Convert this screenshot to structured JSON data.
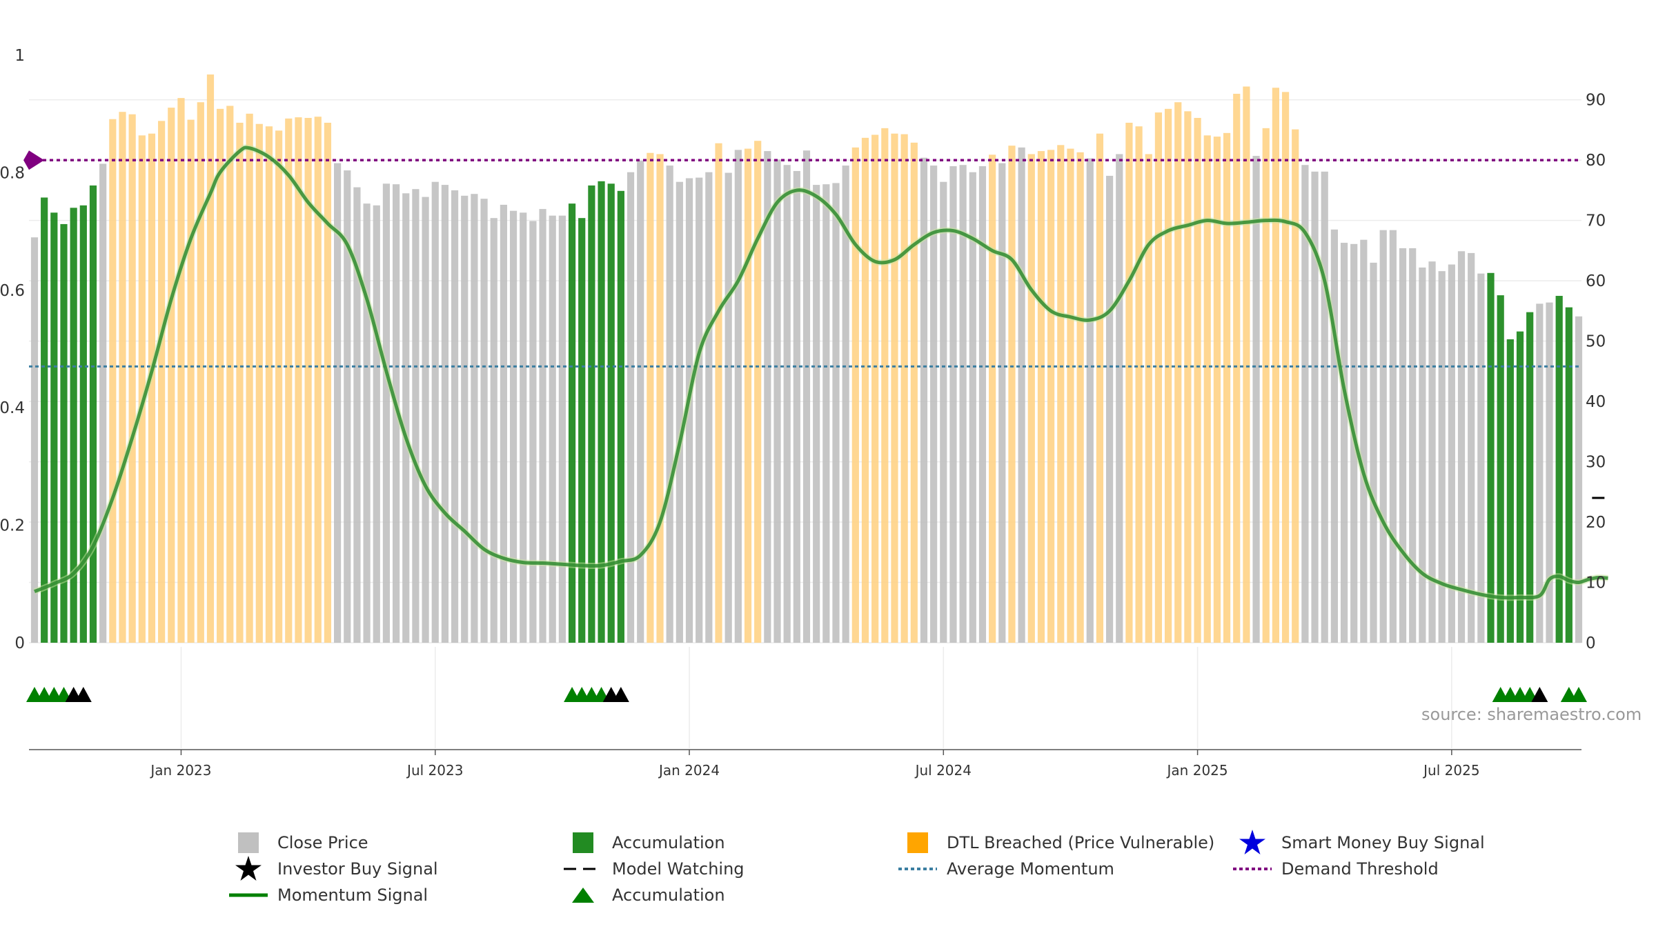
{
  "source": "source: sharemaestro.com",
  "colors": {
    "close": "#c0c0c0",
    "accumulation": "#228b22",
    "dtl": "#ffd386",
    "momentum": "#2e8b2e",
    "average": "#3b7ea1",
    "demand": "#800080"
  },
  "legend": [
    {
      "label": "Close Price",
      "icon": "gray-square"
    },
    {
      "label": "Accumulation",
      "icon": "green-square"
    },
    {
      "label": "DTL Breached (Price Vulnerable)",
      "icon": "orange-square"
    },
    {
      "label": "Smart Money Buy Signal",
      "icon": "blue-star"
    },
    {
      "label": "Investor Buy Signal",
      "icon": "black-star"
    },
    {
      "label": "Model Watching",
      "icon": "black-dash"
    },
    {
      "label": "Average Momentum",
      "icon": "blue-dotted-line"
    },
    {
      "label": "Demand Threshold",
      "icon": "purple-dotted-line"
    },
    {
      "label": "Momentum Signal",
      "icon": "green-line"
    },
    {
      "label": "Accumulation",
      "icon": "green-triangle"
    }
  ],
  "chart_data": {
    "type": "bar",
    "left_axis": {
      "ticks": [
        "0",
        "0.2",
        "0.4",
        "0.6",
        "0.8",
        "1"
      ],
      "range": [
        0,
        1
      ]
    },
    "right_axis": {
      "ticks": [
        "0",
        "10",
        "20",
        "30",
        "40",
        "50",
        "60",
        "70",
        "80",
        "90"
      ],
      "range": [
        0,
        97.4
      ]
    },
    "x_ticks": [
      "Jan 2023",
      "Jul 2023",
      "Jan 2024",
      "Jul 2024",
      "Jan 2025",
      "Jul 2025"
    ],
    "x_tick_weeks": [
      15,
      41,
      67,
      93,
      119,
      145
    ],
    "demand_threshold": 80,
    "average_momentum": 45.8,
    "bars": {
      "values": [
        67.2,
        73.8,
        71.3,
        69.4,
        72.1,
        72.5,
        75.8,
        79.4,
        86.8,
        88.0,
        87.6,
        84.1,
        84.4,
        86.5,
        88.7,
        90.3,
        86.7,
        89.6,
        94.2,
        88.5,
        89.0,
        86.2,
        87.7,
        86.0,
        85.6,
        84.9,
        86.9,
        87.1,
        87.0,
        87.2,
        86.2,
        79.5,
        78.3,
        75.5,
        72.8,
        72.5,
        76.1,
        76.0,
        74.5,
        75.2,
        73.9,
        76.4,
        75.9,
        75.0,
        74.1,
        74.4,
        73.6,
        70.4,
        72.6,
        71.6,
        71.3,
        69.9,
        71.9,
        70.8,
        70.8,
        72.8,
        70.4,
        75.8,
        76.5,
        76.1,
        74.9,
        78.0,
        79.9,
        81.2,
        81.0,
        79.1,
        76.4,
        77.0,
        77.1,
        78.0,
        82.8,
        77.9,
        81.7,
        81.9,
        83.2,
        81.5,
        80.1,
        79.2,
        78.2,
        81.6,
        75.9,
        76.0,
        76.2,
        79.1,
        82.1,
        83.7,
        84.2,
        85.3,
        84.4,
        84.3,
        82.9,
        80.4,
        79.1,
        76.4,
        79.0,
        79.2,
        78.0,
        79.0,
        80.9,
        79.5,
        82.4,
        82.1,
        81.0,
        81.5,
        81.7,
        82.5,
        81.9,
        81.3,
        80.3,
        84.4,
        77.4,
        81.0,
        86.2,
        85.6,
        81.0,
        87.9,
        88.5,
        89.6,
        88.1,
        87.0,
        84.1,
        83.9,
        84.5,
        91.0,
        92.2,
        80.7,
        85.3,
        92.0,
        91.3,
        85.1,
        79.2,
        78.1,
        78.1,
        68.5,
        66.3,
        66.1,
        66.8,
        63.0,
        68.4,
        68.4,
        65.4,
        65.4,
        62.2,
        63.2,
        61.6,
        62.7,
        64.9,
        64.6,
        61.2,
        61.3,
        57.6,
        50.3,
        51.6,
        54.8,
        56.2,
        56.4,
        57.5,
        55.6,
        54.1
      ],
      "category": [
        "c",
        "a",
        "a",
        "a",
        "a",
        "a",
        "a",
        "c",
        "d",
        "d",
        "d",
        "d",
        "d",
        "d",
        "d",
        "d",
        "d",
        "d",
        "d",
        "d",
        "d",
        "d",
        "d",
        "d",
        "d",
        "d",
        "d",
        "d",
        "d",
        "d",
        "d",
        "c",
        "c",
        "c",
        "c",
        "c",
        "c",
        "c",
        "c",
        "c",
        "c",
        "c",
        "c",
        "c",
        "c",
        "c",
        "c",
        "c",
        "c",
        "c",
        "c",
        "c",
        "c",
        "c",
        "c",
        "a",
        "a",
        "a",
        "a",
        "a",
        "a",
        "c",
        "c",
        "d",
        "d",
        "c",
        "c",
        "c",
        "c",
        "c",
        "d",
        "c",
        "c",
        "d",
        "d",
        "c",
        "c",
        "c",
        "c",
        "c",
        "c",
        "c",
        "c",
        "c",
        "d",
        "d",
        "d",
        "d",
        "d",
        "d",
        "d",
        "c",
        "c",
        "c",
        "c",
        "c",
        "c",
        "c",
        "d",
        "c",
        "d",
        "c",
        "d",
        "d",
        "d",
        "d",
        "d",
        "d",
        "c",
        "d",
        "c",
        "c",
        "d",
        "d",
        "d",
        "d",
        "d",
        "d",
        "d",
        "d",
        "d",
        "d",
        "d",
        "d",
        "d",
        "c",
        "d",
        "d",
        "d",
        "d",
        "c",
        "c",
        "c",
        "c",
        "c",
        "c",
        "c",
        "c",
        "c",
        "c",
        "c",
        "c",
        "c",
        "c",
        "c",
        "c",
        "c",
        "c",
        "c",
        "a",
        "a",
        "a",
        "a",
        "a",
        "c",
        "c",
        "a",
        "a",
        "c"
      ]
    },
    "momentum": [
      [
        0,
        8.5
      ],
      [
        2,
        9.8
      ],
      [
        4,
        11.5
      ],
      [
        6,
        16
      ],
      [
        8,
        24
      ],
      [
        10,
        34
      ],
      [
        12,
        45
      ],
      [
        14,
        57
      ],
      [
        16,
        67
      ],
      [
        18,
        74.5
      ],
      [
        19,
        78
      ],
      [
        21,
        81.5
      ],
      [
        22,
        82
      ],
      [
        24,
        80.5
      ],
      [
        26,
        77.5
      ],
      [
        28,
        73
      ],
      [
        30,
        69.5
      ],
      [
        32,
        66
      ],
      [
        34,
        57
      ],
      [
        36,
        45
      ],
      [
        38,
        34
      ],
      [
        40,
        26
      ],
      [
        42,
        21.5
      ],
      [
        44,
        18.5
      ],
      [
        46,
        15.5
      ],
      [
        48,
        14
      ],
      [
        50,
        13.3
      ],
      [
        52,
        13.2
      ],
      [
        54,
        13
      ],
      [
        56,
        12.8
      ],
      [
        58,
        12.8
      ],
      [
        60,
        13.5
      ],
      [
        62,
        14.5
      ],
      [
        64,
        20
      ],
      [
        66,
        33
      ],
      [
        68,
        48
      ],
      [
        70,
        55
      ],
      [
        72,
        60
      ],
      [
        74,
        67
      ],
      [
        76,
        73
      ],
      [
        78,
        75
      ],
      [
        80,
        74
      ],
      [
        82,
        71
      ],
      [
        84,
        66
      ],
      [
        86,
        63.2
      ],
      [
        88,
        63.5
      ],
      [
        90,
        66
      ],
      [
        92,
        68
      ],
      [
        94,
        68.3
      ],
      [
        96,
        67
      ],
      [
        98,
        65
      ],
      [
        100,
        63.5
      ],
      [
        102,
        58.5
      ],
      [
        104,
        55
      ],
      [
        106,
        54
      ],
      [
        108,
        53.5
      ],
      [
        110,
        55
      ],
      [
        112,
        60
      ],
      [
        114,
        66
      ],
      [
        116,
        68.3
      ],
      [
        118,
        69.2
      ],
      [
        120,
        70
      ],
      [
        122,
        69.5
      ],
      [
        124,
        69.7
      ],
      [
        126,
        70
      ],
      [
        128,
        69.8
      ],
      [
        130,
        68
      ],
      [
        132,
        60
      ],
      [
        134,
        42
      ],
      [
        136,
        28
      ],
      [
        138,
        20
      ],
      [
        140,
        15
      ],
      [
        142,
        11.5
      ],
      [
        144,
        9.8
      ],
      [
        146,
        8.8
      ],
      [
        148,
        8
      ],
      [
        150,
        7.5
      ],
      [
        152,
        7.5
      ],
      [
        154,
        7.8
      ],
      [
        155,
        10.5
      ],
      [
        156,
        11
      ],
      [
        157,
        10.3
      ],
      [
        158,
        10
      ],
      [
        159,
        10.5
      ],
      [
        160,
        10.8
      ],
      [
        161,
        10.7
      ]
    ],
    "triangles": [
      {
        "week": 0,
        "type": "accumulation"
      },
      {
        "week": 1,
        "type": "accumulation"
      },
      {
        "week": 2,
        "type": "accumulation"
      },
      {
        "week": 3,
        "type": "accumulation"
      },
      {
        "week": 4,
        "type": "investor"
      },
      {
        "week": 5,
        "type": "investor"
      },
      {
        "week": 55,
        "type": "accumulation"
      },
      {
        "week": 56,
        "type": "accumulation"
      },
      {
        "week": 57,
        "type": "accumulation"
      },
      {
        "week": 58,
        "type": "accumulation"
      },
      {
        "week": 59,
        "type": "investor"
      },
      {
        "week": 60,
        "type": "investor"
      },
      {
        "week": 150,
        "type": "accumulation"
      },
      {
        "week": 151,
        "type": "accumulation"
      },
      {
        "week": 152,
        "type": "accumulation"
      },
      {
        "week": 153,
        "type": "accumulation"
      },
      {
        "week": 154,
        "type": "investor"
      },
      {
        "week": 157,
        "type": "accumulation"
      },
      {
        "week": 158,
        "type": "accumulation"
      }
    ],
    "model_watching": [
      {
        "week": 160,
        "value": 24
      }
    ]
  }
}
